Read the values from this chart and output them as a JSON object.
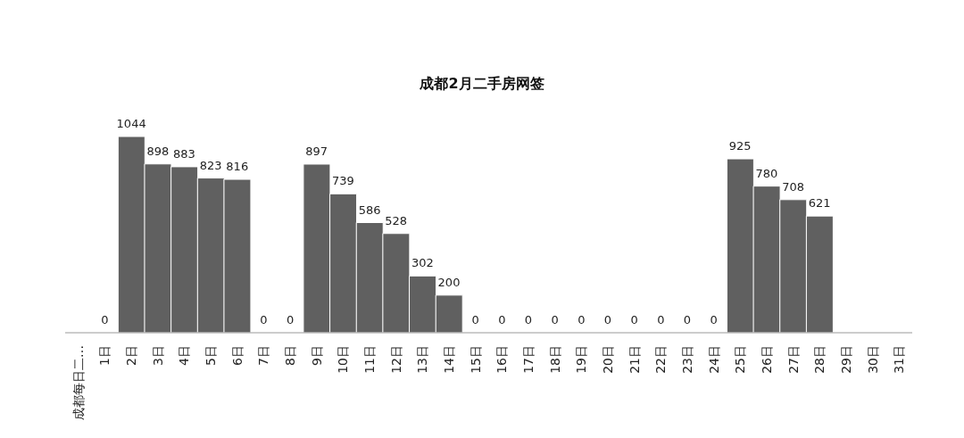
{
  "chart_data": {
    "type": "bar",
    "title": "成都2月二手房网签",
    "categories": [
      "成都每日二…",
      "1日",
      "2日",
      "3日",
      "4日",
      "5日",
      "6日",
      "7日",
      "8日",
      "9日",
      "10日",
      "11日",
      "12日",
      "13日",
      "14日",
      "15日",
      "16日",
      "17日",
      "18日",
      "19日",
      "20日",
      "21日",
      "22日",
      "23日",
      "24日",
      "25日",
      "26日",
      "27日",
      "28日",
      "29日",
      "30日",
      "31日"
    ],
    "values": [
      null,
      0,
      1044,
      898,
      883,
      823,
      816,
      0,
      0,
      897,
      739,
      586,
      528,
      302,
      200,
      0,
      0,
      0,
      0,
      0,
      0,
      0,
      0,
      0,
      0,
      925,
      780,
      708,
      621,
      null,
      null,
      null
    ],
    "color": "#606060",
    "data_labels": true,
    "grid": false,
    "legend": false
  }
}
